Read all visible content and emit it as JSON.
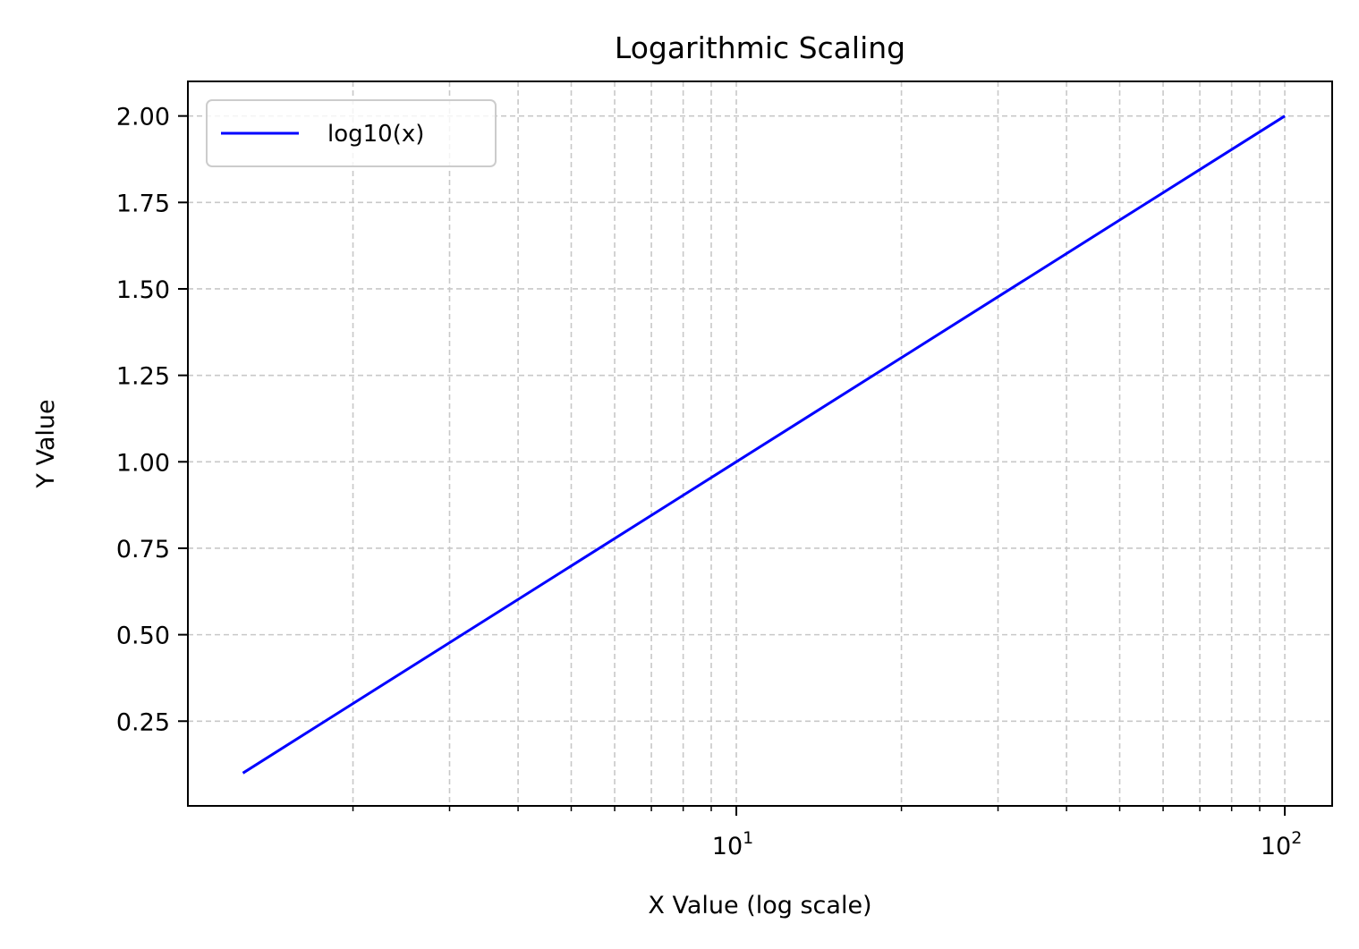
{
  "chart_data": {
    "type": "line",
    "title": "Logarithmic Scaling",
    "xlabel": "X Value (log scale)",
    "ylabel": "Y Value",
    "xscale": "log",
    "xlim": [
      1.0,
      122
    ],
    "ylim": [
      0.005,
      2.1
    ],
    "x_major_ticks": [
      {
        "value": 10,
        "base": "10",
        "exp": "1"
      },
      {
        "value": 100,
        "base": "10",
        "exp": "2"
      }
    ],
    "x_minor_ticks": [
      2,
      3,
      4,
      5,
      6,
      7,
      8,
      9,
      20,
      30,
      40,
      50,
      60,
      70,
      80,
      90
    ],
    "y_ticks": [
      {
        "value": 0.25,
        "label": "0.25"
      },
      {
        "value": 0.5,
        "label": "0.50"
      },
      {
        "value": 0.75,
        "label": "0.75"
      },
      {
        "value": 1.0,
        "label": "1.00"
      },
      {
        "value": 1.25,
        "label": "1.25"
      },
      {
        "value": 1.5,
        "label": "1.50"
      },
      {
        "value": 1.75,
        "label": "1.75"
      },
      {
        "value": 2.0,
        "label": "2.00"
      }
    ],
    "grid": true,
    "grid_which": "both",
    "grid_style": "dashed",
    "grid_color": "#c8c8c8",
    "legend_position": "upper-left",
    "series": [
      {
        "name": "log10(x)",
        "color": "#0000ff",
        "x": [
          1.26,
          2,
          3,
          5,
          10,
          20,
          50,
          100
        ],
        "y": [
          0.1,
          0.301,
          0.477,
          0.699,
          1.0,
          1.301,
          1.699,
          2.0
        ]
      }
    ]
  }
}
